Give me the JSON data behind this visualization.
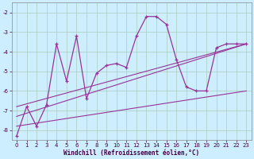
{
  "xlabel": "Windchill (Refroidissement éolien,°C)",
  "bg_color": "#cceeff",
  "line_color": "#993399",
  "grid_color": "#aaccbb",
  "xlim": [
    -0.5,
    23.5
  ],
  "ylim": [
    -8.5,
    -1.5
  ],
  "yticks": [
    -8,
    -7,
    -6,
    -5,
    -4,
    -3,
    -2
  ],
  "xticks": [
    0,
    1,
    2,
    3,
    4,
    5,
    6,
    7,
    8,
    9,
    10,
    11,
    12,
    13,
    14,
    15,
    16,
    17,
    18,
    19,
    20,
    21,
    22,
    23
  ],
  "series1_x": [
    0,
    1,
    2,
    3,
    4,
    5,
    6,
    7,
    8,
    9,
    10,
    11,
    12,
    13,
    14,
    15,
    16,
    17,
    18,
    19,
    20,
    21,
    22,
    23
  ],
  "series1_y": [
    -8.3,
    -6.8,
    -7.8,
    -6.7,
    -3.6,
    -5.5,
    -3.2,
    -6.4,
    -5.1,
    -4.7,
    -4.6,
    -4.8,
    -3.2,
    -2.2,
    -2.2,
    -2.6,
    -4.4,
    -5.8,
    -6.0,
    -6.0,
    -3.8,
    -3.6,
    -3.6,
    -3.6
  ],
  "series2_x": [
    0,
    23
  ],
  "series2_y": [
    -6.8,
    -3.6
  ],
  "series3_x": [
    0,
    23
  ],
  "series3_y": [
    -7.3,
    -3.6
  ],
  "series4_x": [
    0,
    23
  ],
  "series4_y": [
    -7.8,
    -6.0
  ]
}
